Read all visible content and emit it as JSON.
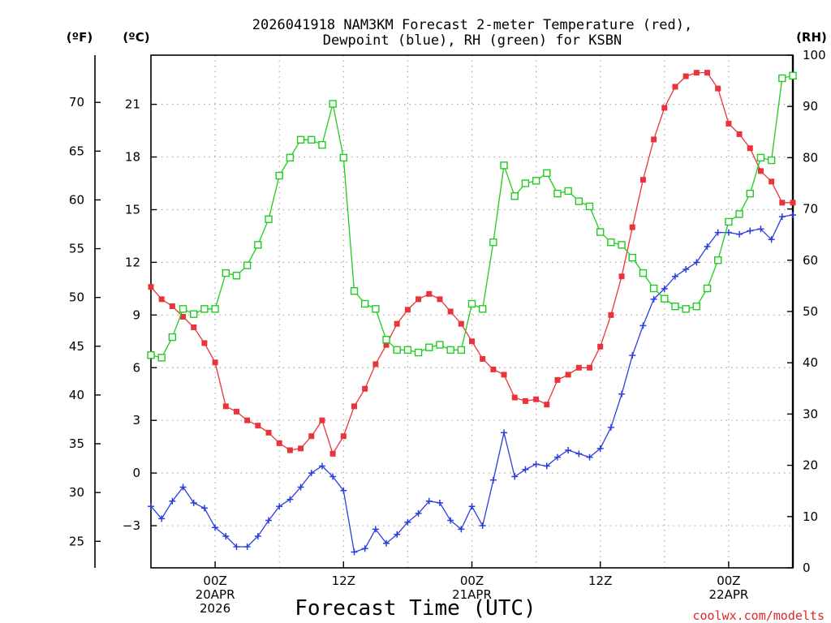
{
  "chart_data": {
    "type": "line",
    "title": [
      "2026041918 NAM3KM Forecast 2-meter Temperature (red),",
      "Dewpoint (blue), RH (green) for KSBN"
    ],
    "xlabel": "Forecast Time (UTC)",
    "credit": "coolwx.com/modelts",
    "units": {
      "fahrenheit": "(ºF)",
      "celsius": "(ºC)",
      "rh": "(RH)"
    },
    "x_range_hours": [
      -6,
      54
    ],
    "x_ticks": [
      {
        "hour": 0,
        "lines": [
          "00Z",
          "20APR",
          "2026"
        ]
      },
      {
        "hour": 12,
        "lines": [
          "12Z"
        ]
      },
      {
        "hour": 24,
        "lines": [
          "00Z",
          "21APR"
        ]
      },
      {
        "hour": 36,
        "lines": [
          "12Z"
        ]
      },
      {
        "hour": 48,
        "lines": [
          "00Z",
          "22APR"
        ]
      }
    ],
    "celsius_axis": {
      "range": [
        -5.4,
        23.8
      ],
      "ticks": [
        "-3",
        "0",
        "3",
        "6",
        "9",
        "12",
        "15",
        "18",
        "21"
      ]
    },
    "fahrenheit_axis": {
      "range": [
        22.28,
        74.84
      ],
      "ticks": [
        "25",
        "30",
        "35",
        "40",
        "45",
        "50",
        "55",
        "60",
        "65",
        "70"
      ]
    },
    "rh_axis": {
      "range": [
        0,
        100
      ],
      "ticks": [
        "0",
        "10",
        "20",
        "30",
        "40",
        "50",
        "60",
        "70",
        "80",
        "90",
        "100"
      ]
    },
    "series": [
      {
        "name": "Temperature",
        "unit": "C",
        "color": "#e8343a",
        "marker": "filled-square",
        "values": [
          10.6,
          9.9,
          9.5,
          8.9,
          8.3,
          7.4,
          6.3,
          3.8,
          3.5,
          3.0,
          2.7,
          2.3,
          1.7,
          1.3,
          1.4,
          2.1,
          3.0,
          1.1,
          2.1,
          3.8,
          4.8,
          6.2,
          7.3,
          8.5,
          9.3,
          9.9,
          10.2,
          9.9,
          9.2,
          8.5,
          7.5,
          6.5,
          5.9,
          5.6,
          4.3,
          4.1,
          4.2,
          3.9,
          5.3,
          5.6,
          6.0,
          6.0,
          7.2,
          9.0,
          11.2,
          14.0,
          16.7,
          19.0,
          20.8,
          22.0,
          22.6,
          22.8,
          22.8,
          21.9,
          19.9,
          19.3,
          18.5,
          17.2,
          16.6,
          15.4,
          15.4
        ]
      },
      {
        "name": "Dewpoint",
        "unit": "C",
        "color": "#2a3edb",
        "marker": "plus",
        "values": [
          -1.9,
          -2.6,
          -1.6,
          -0.8,
          -1.7,
          -2.0,
          -3.1,
          -3.6,
          -4.2,
          -4.2,
          -3.6,
          -2.7,
          -1.9,
          -1.5,
          -0.8,
          0.0,
          0.4,
          -0.2,
          -1.0,
          -4.5,
          -4.3,
          -3.2,
          -4.0,
          -3.5,
          -2.8,
          -2.3,
          -1.6,
          -1.7,
          -2.7,
          -3.2,
          -1.9,
          -3.0,
          -0.4,
          2.3,
          -0.2,
          0.2,
          0.5,
          0.4,
          0.9,
          1.3,
          1.1,
          0.9,
          1.4,
          2.6,
          4.5,
          6.7,
          8.4,
          9.9,
          10.5,
          11.2,
          11.6,
          12.0,
          12.9,
          13.7,
          13.7,
          13.6,
          13.8,
          13.9,
          13.3,
          14.6,
          14.7
        ]
      },
      {
        "name": "RH",
        "unit": "%",
        "color": "#1fcc1f",
        "marker": "open-square",
        "values": [
          41.5,
          41.0,
          45.0,
          50.5,
          49.5,
          50.5,
          50.5,
          57.5,
          57.0,
          59.0,
          63.0,
          68.0,
          76.5,
          80.0,
          83.5,
          83.5,
          82.5,
          90.5,
          80.0,
          54.0,
          51.5,
          50.5,
          44.5,
          42.5,
          42.5,
          42.0,
          43.0,
          43.5,
          42.5,
          42.5,
          51.5,
          50.5,
          63.5,
          78.5,
          72.5,
          75.0,
          75.5,
          77.0,
          73.0,
          73.5,
          71.5,
          70.5,
          65.5,
          63.5,
          63.0,
          60.5,
          57.5,
          54.5,
          52.5,
          51.0,
          50.5,
          51.0,
          54.5,
          60.0,
          67.5,
          69.0,
          73.0,
          80.0,
          79.5,
          95.5,
          96.0
        ]
      }
    ]
  }
}
